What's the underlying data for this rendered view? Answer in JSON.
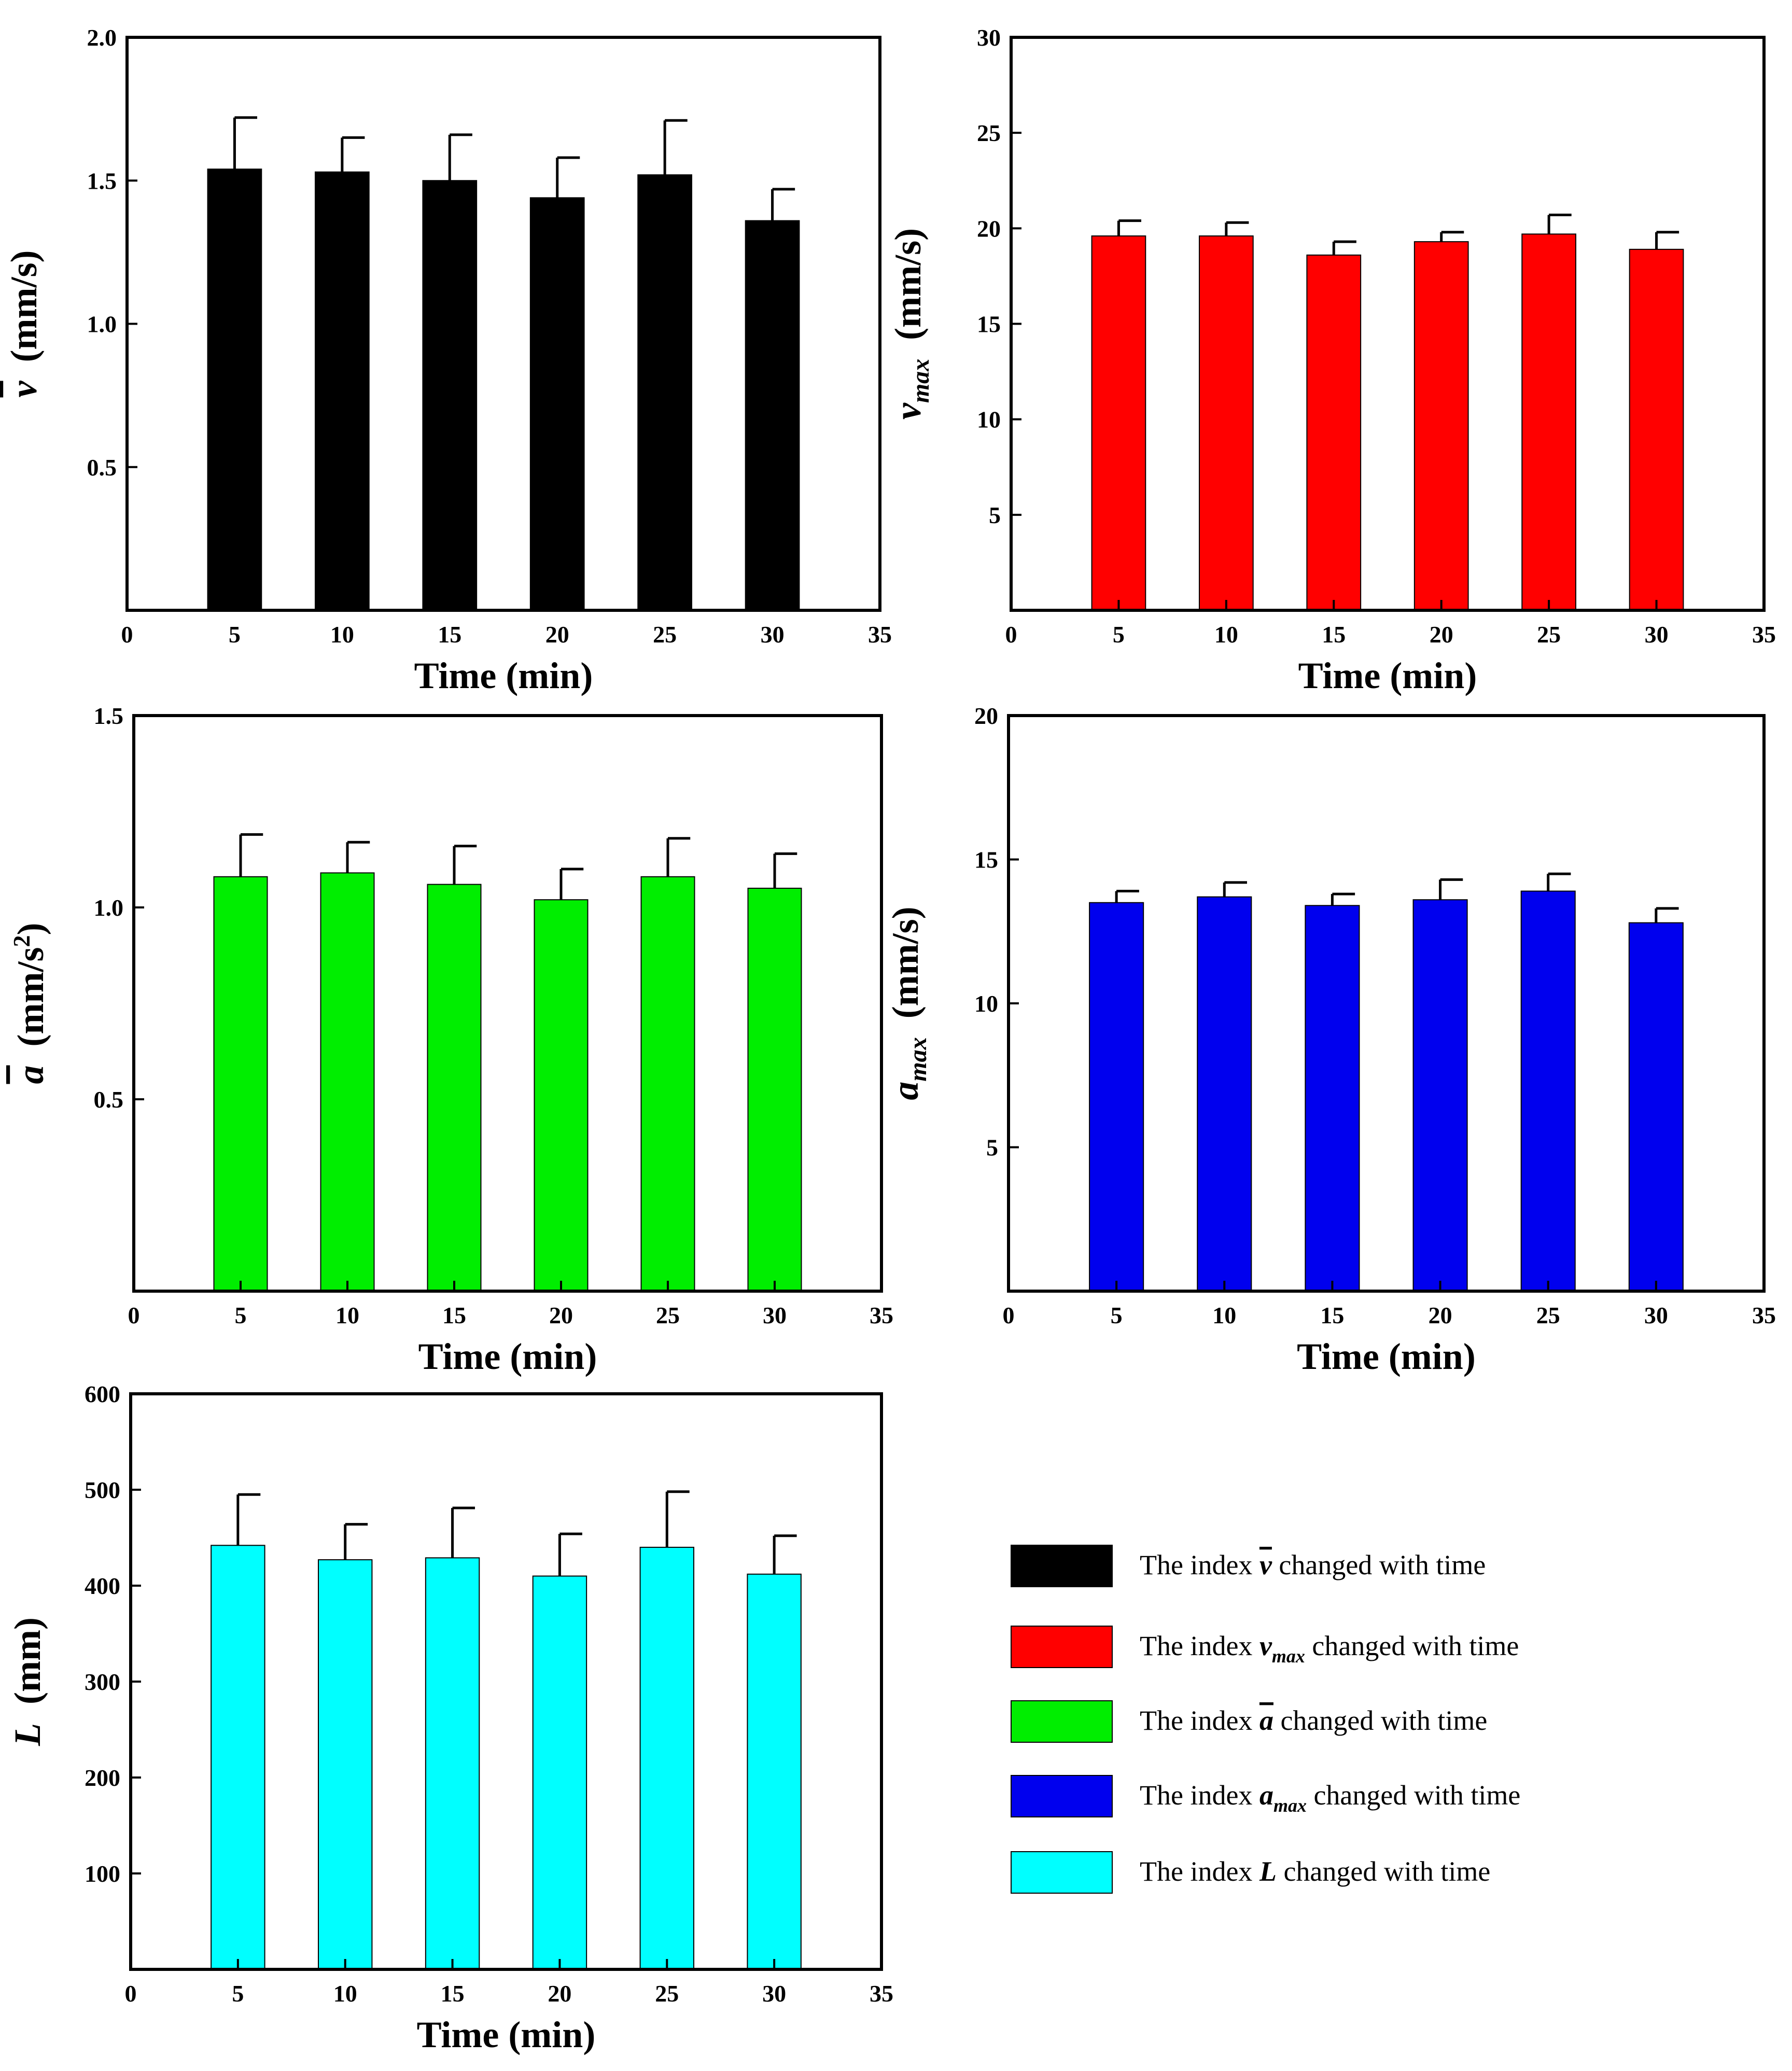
{
  "chart_data": [
    {
      "id": "v_mean",
      "type": "bar",
      "x": [
        5,
        10,
        15,
        20,
        25,
        30
      ],
      "values": [
        1.54,
        1.53,
        1.5,
        1.44,
        1.52,
        1.36
      ],
      "errors": [
        0.18,
        0.12,
        0.16,
        0.14,
        0.19,
        0.11
      ],
      "xlim": [
        0,
        35
      ],
      "ylim": [
        0,
        2.0
      ],
      "xticks": [
        "0",
        "5",
        "10",
        "15",
        "20",
        "25",
        "30",
        "35"
      ],
      "yticks": [
        "0.5",
        "1.0",
        "1.5",
        "2.0"
      ],
      "xlabel": "Time (min)",
      "ylabel_symbol": "v",
      "ylabel_sub": "",
      "ylabel_overbar": true,
      "ylabel_unit": "(mm/s)",
      "ylabel_unit_sup": "",
      "color": "#000000"
    },
    {
      "id": "v_max",
      "type": "bar",
      "x": [
        5,
        10,
        15,
        20,
        25,
        30
      ],
      "values": [
        19.6,
        19.6,
        18.6,
        19.3,
        19.7,
        18.9
      ],
      "errors": [
        0.8,
        0.7,
        0.7,
        0.5,
        1.0,
        0.9
      ],
      "xlim": [
        0,
        35
      ],
      "ylim": [
        0,
        30
      ],
      "xticks": [
        "0",
        "5",
        "10",
        "15",
        "20",
        "25",
        "30",
        "35"
      ],
      "yticks": [
        "5",
        "10",
        "15",
        "20",
        "25",
        "30"
      ],
      "xlabel": "Time (min)",
      "ylabel_symbol": "v",
      "ylabel_sub": "max",
      "ylabel_overbar": false,
      "ylabel_unit": "(mm/s)",
      "ylabel_unit_sup": "",
      "color": "#ff0000"
    },
    {
      "id": "a_mean",
      "type": "bar",
      "x": [
        5,
        10,
        15,
        20,
        25,
        30
      ],
      "values": [
        1.08,
        1.09,
        1.06,
        1.02,
        1.08,
        1.05
      ],
      "errors": [
        0.11,
        0.08,
        0.1,
        0.08,
        0.1,
        0.09
      ],
      "xlim": [
        0,
        35
      ],
      "ylim": [
        0,
        1.5
      ],
      "xticks": [
        "0",
        "5",
        "10",
        "15",
        "20",
        "25",
        "30",
        "35"
      ],
      "yticks": [
        "0.5",
        "1.0",
        "1.5"
      ],
      "xlabel": "Time (min)",
      "ylabel_symbol": "a",
      "ylabel_sub": "",
      "ylabel_overbar": true,
      "ylabel_unit": "(mm/s",
      "ylabel_unit_sup": "2",
      "color": "#00ee00"
    },
    {
      "id": "a_max",
      "type": "bar",
      "x": [
        5,
        10,
        15,
        20,
        25,
        30
      ],
      "values": [
        13.5,
        13.7,
        13.4,
        13.6,
        13.9,
        12.8
      ],
      "errors": [
        0.4,
        0.5,
        0.4,
        0.7,
        0.6,
        0.5
      ],
      "xlim": [
        0,
        35
      ],
      "ylim": [
        0,
        20
      ],
      "xticks": [
        "0",
        "5",
        "10",
        "15",
        "20",
        "25",
        "30",
        "35"
      ],
      "yticks": [
        "5",
        "10",
        "15",
        "20"
      ],
      "xlabel": "Time (min)",
      "ylabel_symbol": "a",
      "ylabel_sub": "max",
      "ylabel_overbar": false,
      "ylabel_unit": "(mm/s)",
      "ylabel_unit_sup": "",
      "color": "#0000ee"
    },
    {
      "id": "L",
      "type": "bar",
      "x": [
        5,
        10,
        15,
        20,
        25,
        30
      ],
      "values": [
        442,
        427,
        429,
        410,
        440,
        412
      ],
      "errors": [
        53,
        37,
        52,
        44,
        58,
        40
      ],
      "xlim": [
        0,
        35
      ],
      "ylim": [
        0,
        600
      ],
      "xticks": [
        "0",
        "5",
        "10",
        "15",
        "20",
        "25",
        "30",
        "35"
      ],
      "yticks": [
        "100",
        "200",
        "300",
        "400",
        "500",
        "600"
      ],
      "xlabel": "Time (min)",
      "ylabel_symbol": "L",
      "ylabel_sub": "",
      "ylabel_overbar": false,
      "ylabel_unit": "(mm)",
      "ylabel_unit_sup": "",
      "color": "#00ffff"
    }
  ],
  "legend": [
    {
      "prefix": "The index ",
      "symbol": "v",
      "overbar": true,
      "sub": "",
      "suffix": " changed with time",
      "color": "#000000"
    },
    {
      "prefix": "The index ",
      "symbol": "v",
      "overbar": false,
      "sub": "max",
      "suffix": " changed with time",
      "color": "#ff0000"
    },
    {
      "prefix": "The index ",
      "symbol": "a",
      "overbar": true,
      "sub": "",
      "suffix": " changed with time",
      "color": "#00ee00"
    },
    {
      "prefix": "The index ",
      "symbol": "a",
      "overbar": false,
      "sub": "max",
      "suffix": " changed with time",
      "color": "#0000ee"
    },
    {
      "prefix": "The index ",
      "symbol": "L",
      "overbar": false,
      "sub": "",
      "suffix": " changed with time",
      "color": "#00ffff"
    }
  ]
}
